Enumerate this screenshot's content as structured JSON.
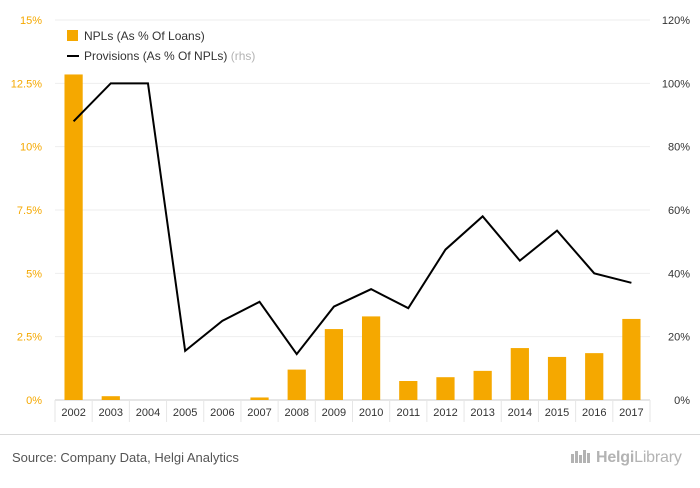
{
  "chart_data": {
    "type": "bar",
    "categories": [
      "2002",
      "2003",
      "2004",
      "2005",
      "2006",
      "2007",
      "2008",
      "2009",
      "2010",
      "2011",
      "2012",
      "2013",
      "2014",
      "2015",
      "2016",
      "2017"
    ],
    "series": [
      {
        "name": "NPLs (As % Of Loans)",
        "type": "bar",
        "axis": "left",
        "color": "#f5a800",
        "values": [
          12.85,
          0.15,
          0.0,
          0.0,
          0.0,
          0.1,
          1.2,
          2.8,
          3.3,
          0.75,
          0.9,
          1.15,
          2.05,
          1.7,
          1.85,
          3.2
        ]
      },
      {
        "name": "Provisions (As % Of NPLs)",
        "suffix": "(rhs)",
        "type": "line",
        "axis": "right",
        "color": "#000000",
        "values": [
          88,
          100,
          100,
          15.5,
          25,
          31,
          14.5,
          29.5,
          35,
          29,
          47.5,
          58,
          44,
          53.5,
          40,
          37
        ]
      }
    ],
    "left_axis": {
      "min": 0,
      "max": 15,
      "ticks": [
        0,
        2.5,
        5,
        7.5,
        10,
        12.5,
        15
      ],
      "tick_labels": [
        "0%",
        "2.5%",
        "5%",
        "7.5%",
        "10%",
        "12.5%",
        "15%"
      ],
      "color": "#f5a800"
    },
    "right_axis": {
      "min": 0,
      "max": 120,
      "ticks": [
        0,
        20,
        40,
        60,
        80,
        100,
        120
      ],
      "tick_labels": [
        "0%",
        "20%",
        "40%",
        "60%",
        "80%",
        "100%",
        "120%"
      ],
      "color": "#333333"
    },
    "legend_position": "top-left",
    "grid": true
  },
  "footer": {
    "source": "Source: Company Data, Helgi Analytics",
    "brand_left": "Helgi",
    "brand_right": "Library"
  }
}
